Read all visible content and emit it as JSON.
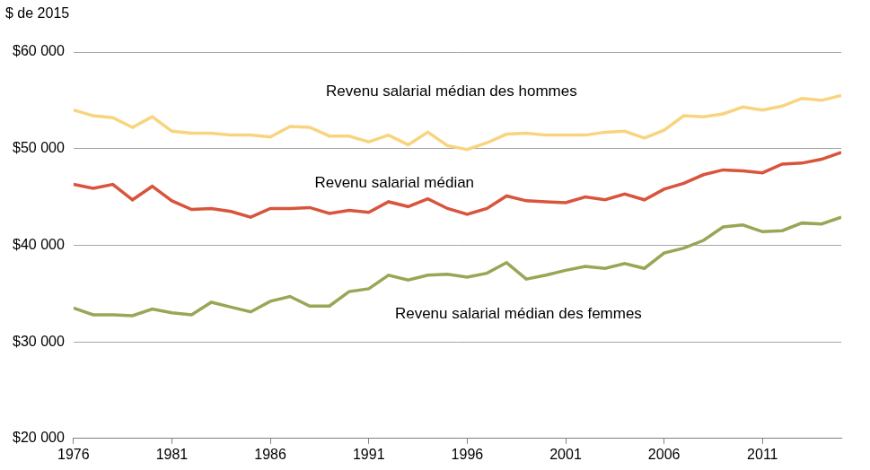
{
  "chart_data": {
    "type": "line",
    "y_label": "$ de 2015",
    "x": [
      1976,
      1977,
      1978,
      1979,
      1980,
      1981,
      1982,
      1983,
      1984,
      1985,
      1986,
      1987,
      1988,
      1989,
      1990,
      1991,
      1992,
      1993,
      1994,
      1995,
      1996,
      1997,
      1998,
      1999,
      2000,
      2001,
      2002,
      2003,
      2004,
      2005,
      2006,
      2007,
      2008,
      2009,
      2010,
      2011,
      2012,
      2013,
      2014,
      2015
    ],
    "xlim": [
      1976,
      2015
    ],
    "xticks": [
      1976,
      1981,
      1986,
      1991,
      1996,
      2001,
      2006,
      2011
    ],
    "ylim": [
      20000,
      60000
    ],
    "yticks": [
      {
        "value": 20000,
        "label": "$20 000"
      },
      {
        "value": 30000,
        "label": "$30 000"
      },
      {
        "value": 40000,
        "label": "$40 000"
      },
      {
        "value": 50000,
        "label": "$50 000"
      },
      {
        "value": 60000,
        "label": "$60 000"
      }
    ],
    "grid": true,
    "series": [
      {
        "name": "Revenu salarial médian des hommes",
        "color": "#f9d47f",
        "annotation": {
          "x": 1995.2,
          "y": 55900
        },
        "values": [
          54000,
          53400,
          53200,
          52200,
          53300,
          51800,
          51600,
          51600,
          51400,
          51400,
          51200,
          52300,
          52200,
          51300,
          51300,
          50700,
          51400,
          50400,
          51700,
          50300,
          49900,
          50600,
          51500,
          51600,
          51400,
          51400,
          51400,
          51700,
          51800,
          51100,
          51900,
          53400,
          53300,
          53600,
          54300,
          54000,
          54400,
          55200,
          55000,
          55500
        ]
      },
      {
        "name": "Revenu salarial médian",
        "color": "#d9543c",
        "annotation": {
          "x": 1992.3,
          "y": 46400
        },
        "values": [
          46300,
          45900,
          46300,
          44700,
          46100,
          44600,
          43700,
          43800,
          43500,
          42900,
          43800,
          43800,
          43900,
          43300,
          43600,
          43400,
          44500,
          44000,
          44800,
          43800,
          43200,
          43800,
          45100,
          44600,
          44500,
          44400,
          45000,
          44700,
          45300,
          44700,
          45800,
          46400,
          47300,
          47800,
          47700,
          47500,
          48400,
          48500,
          48900,
          49600
        ]
      },
      {
        "name": "Revenu salarial médian des femmes",
        "color": "#98a655",
        "annotation": {
          "x": 1998.6,
          "y": 32900
        },
        "values": [
          33500,
          32800,
          32800,
          32700,
          33400,
          33000,
          32800,
          34100,
          33600,
          33100,
          34200,
          34700,
          33700,
          33700,
          35200,
          35500,
          36900,
          36400,
          36900,
          37000,
          36700,
          37100,
          38200,
          36500,
          36900,
          37400,
          37800,
          37600,
          38100,
          37600,
          39200,
          39700,
          40500,
          41900,
          42100,
          41400,
          41500,
          42300,
          42200,
          42900
        ]
      }
    ]
  }
}
